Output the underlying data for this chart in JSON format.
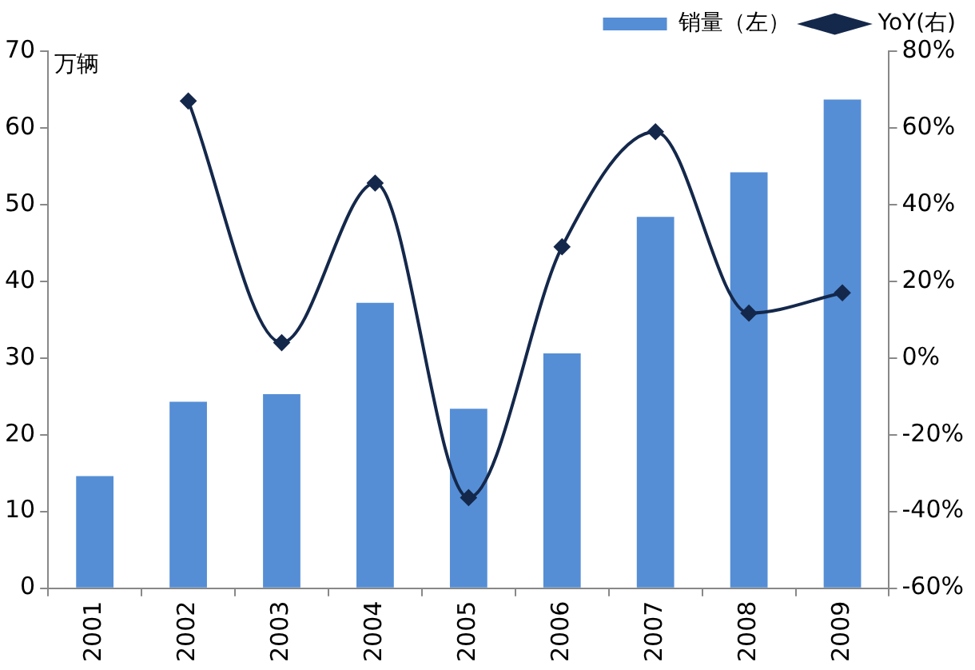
{
  "chart_data": {
    "type": "bar",
    "ylabel": "万辆",
    "categories": [
      "2001",
      "2002",
      "2003",
      "2004",
      "2005",
      "2006",
      "2007",
      "2008",
      "2009"
    ],
    "series": [
      {
        "name": "销量（左）",
        "color": "#558ed5",
        "values": [
          14.6,
          24.3,
          25.3,
          37.2,
          23.4,
          30.6,
          48.4,
          54.2,
          63.7
        ]
      },
      {
        "name": "YoY(右)",
        "type": "line",
        "axis": "y2",
        "color": "#14284b",
        "marker": "diamond",
        "values": [
          null,
          67,
          4,
          45.6,
          -36.4,
          29,
          59,
          11.7,
          17
        ]
      }
    ],
    "ylim": [
      0,
      70
    ],
    "yticks": [
      0,
      10,
      20,
      30,
      40,
      50,
      60,
      70
    ],
    "y2lim": [
      -60,
      80
    ],
    "y2ticks": [
      {
        "value": -60,
        "label": "-60%"
      },
      {
        "value": -40,
        "label": "-40%"
      },
      {
        "value": -20,
        "label": "-20%"
      },
      {
        "value": 0,
        "label": "0%"
      },
      {
        "value": 20,
        "label": "20%"
      },
      {
        "value": 40,
        "label": "40%"
      },
      {
        "value": 60,
        "label": "60%"
      },
      {
        "value": 80,
        "label": "80%"
      }
    ],
    "grid": false,
    "legend": "top"
  }
}
